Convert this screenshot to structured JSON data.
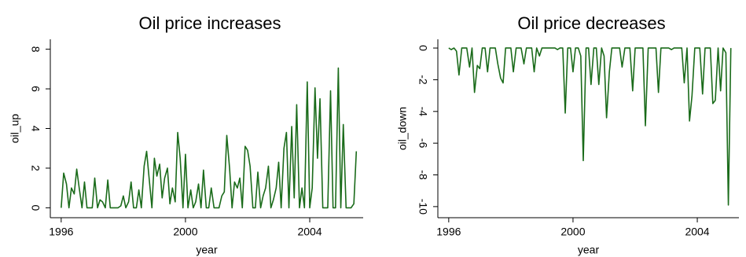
{
  "chart_data": [
    {
      "type": "line",
      "title": "Oil price increases",
      "x_label": "year",
      "y_label": "oil_up",
      "x": [
        1996,
        1996.08,
        1996.17,
        1996.25,
        1996.33,
        1996.42,
        1996.5,
        1996.58,
        1996.67,
        1996.75,
        1996.83,
        1996.92,
        1997,
        1997.08,
        1997.17,
        1997.25,
        1997.33,
        1997.42,
        1997.5,
        1997.58,
        1997.67,
        1997.75,
        1997.83,
        1997.92,
        1998,
        1998.08,
        1998.17,
        1998.25,
        1998.33,
        1998.42,
        1998.5,
        1998.58,
        1998.67,
        1998.75,
        1998.83,
        1998.92,
        1999,
        1999.08,
        1999.17,
        1999.25,
        1999.33,
        1999.42,
        1999.5,
        1999.58,
        1999.67,
        1999.75,
        1999.83,
        1999.92,
        2000,
        2000.08,
        2000.17,
        2000.25,
        2000.33,
        2000.42,
        2000.5,
        2000.58,
        2000.67,
        2000.75,
        2000.83,
        2000.92,
        2001,
        2001.08,
        2001.17,
        2001.25,
        2001.33,
        2001.42,
        2001.5,
        2001.58,
        2001.67,
        2001.75,
        2001.83,
        2001.92,
        2002,
        2002.08,
        2002.17,
        2002.25,
        2002.33,
        2002.42,
        2002.5,
        2002.58,
        2002.67,
        2002.75,
        2002.83,
        2002.92,
        2003,
        2003.08,
        2003.17,
        2003.25,
        2003.33,
        2003.42,
        2003.5,
        2003.58,
        2003.67,
        2003.75,
        2003.83,
        2003.92,
        2004,
        2004.08,
        2004.17,
        2004.25,
        2004.33,
        2004.42,
        2004.5,
        2004.58,
        2004.67,
        2004.75,
        2004.83,
        2004.92,
        2005,
        2005.08,
        2005.17,
        2005.25,
        2005.33,
        2005.42,
        2005.5
      ],
      "series": [
        {
          "name": "oil_up",
          "color": "#1a6b1a",
          "values": [
            0,
            1.75,
            1.2,
            0,
            1.0,
            0.7,
            1.95,
            1.0,
            0,
            1.3,
            0,
            0,
            0,
            1.5,
            0,
            0.4,
            0.3,
            0,
            1.4,
            0,
            0,
            0,
            0,
            0.1,
            0.6,
            0,
            0.3,
            1.3,
            0,
            0,
            0.9,
            0,
            2.1,
            2.85,
            1.5,
            0,
            2.5,
            1.6,
            2.2,
            0.5,
            1.5,
            2.0,
            0.2,
            1.0,
            0.3,
            3.8,
            2.5,
            0,
            2.7,
            0,
            0.9,
            0,
            0.3,
            1.2,
            0,
            1.9,
            0,
            0,
            1.0,
            0,
            0,
            0,
            0.6,
            0.8,
            3.65,
            2.0,
            0,
            1.3,
            1.0,
            1.5,
            0,
            3.1,
            2.9,
            2.1,
            0,
            0,
            1.8,
            0,
            0.6,
            1.0,
            2.1,
            0,
            0.4,
            1.0,
            2.3,
            0,
            3.0,
            3.8,
            0,
            4.1,
            0.5,
            5.2,
            0,
            1.0,
            0,
            6.35,
            0,
            1.0,
            6.05,
            2.5,
            5.5,
            0,
            0,
            0,
            5.9,
            0,
            0,
            7.05,
            0,
            4.2,
            0,
            0,
            0,
            0.2,
            2.85
          ]
        }
      ],
      "xlim": [
        1995.65,
        2005.72
      ],
      "xticks": [
        1996,
        2000,
        2004
      ],
      "ylim": [
        -0.5,
        8.5
      ],
      "yticks": [
        0,
        2,
        4,
        6,
        8
      ]
    },
    {
      "type": "line",
      "title": "Oil price decreases",
      "x_label": "year",
      "y_label": "oil_down",
      "x": [
        1996,
        1996.08,
        1996.17,
        1996.25,
        1996.33,
        1996.42,
        1996.5,
        1996.58,
        1996.67,
        1996.75,
        1996.83,
        1996.92,
        1997,
        1997.08,
        1997.17,
        1997.25,
        1997.33,
        1997.42,
        1997.5,
        1997.58,
        1997.67,
        1997.75,
        1997.83,
        1997.92,
        1998,
        1998.08,
        1998.17,
        1998.25,
        1998.33,
        1998.42,
        1998.5,
        1998.58,
        1998.67,
        1998.75,
        1998.83,
        1998.92,
        1999,
        1999.08,
        1999.17,
        1999.25,
        1999.33,
        1999.42,
        1999.5,
        1999.58,
        1999.67,
        1999.75,
        1999.83,
        1999.92,
        2000,
        2000.08,
        2000.17,
        2000.25,
        2000.33,
        2000.42,
        2000.5,
        2000.58,
        2000.67,
        2000.75,
        2000.83,
        2000.92,
        2001,
        2001.08,
        2001.17,
        2001.25,
        2001.33,
        2001.42,
        2001.5,
        2001.58,
        2001.67,
        2001.75,
        2001.83,
        2001.92,
        2002,
        2002.08,
        2002.17,
        2002.25,
        2002.33,
        2002.42,
        2002.5,
        2002.58,
        2002.67,
        2002.75,
        2002.83,
        2002.92,
        2003,
        2003.08,
        2003.17,
        2003.25,
        2003.33,
        2003.42,
        2003.5,
        2003.58,
        2003.67,
        2003.75,
        2003.83,
        2003.92,
        2004,
        2004.08,
        2004.17,
        2004.25,
        2004.33,
        2004.42,
        2004.5,
        2004.58,
        2004.67,
        2004.75,
        2004.83,
        2004.92,
        2005,
        2005.08
      ],
      "series": [
        {
          "name": "oil_down",
          "color": "#1a6b1a",
          "values": [
            0,
            -0.1,
            0,
            -0.2,
            -1.7,
            0,
            0,
            0,
            -1.2,
            0,
            -2.8,
            -1.1,
            -1.3,
            0,
            0,
            -1.5,
            0,
            0,
            0,
            -1.0,
            -1.9,
            -2.2,
            0,
            0,
            0,
            -1.5,
            0,
            0,
            0,
            -1.0,
            0,
            0,
            0,
            -1.5,
            0,
            -0.5,
            0,
            0,
            0,
            0,
            0,
            0,
            -0.1,
            0,
            0,
            -4.1,
            0,
            0,
            -1.5,
            0,
            0,
            -0.5,
            -7.1,
            0,
            0,
            -2.3,
            0,
            0,
            -2.3,
            0,
            -0.5,
            -4.4,
            -1.5,
            0,
            0,
            0,
            0,
            -1.2,
            0,
            0,
            0,
            -2.7,
            0,
            0,
            0,
            0,
            -4.9,
            0,
            0,
            0,
            0,
            -2.8,
            0,
            0,
            0,
            0,
            -0.1,
            0,
            0,
            0,
            0,
            -2.2,
            0,
            -4.6,
            -3.0,
            0,
            0,
            0,
            -2.9,
            0,
            0,
            0,
            -3.5,
            -3.3,
            0,
            -2.7,
            0,
            -0.3,
            -9.9,
            0
          ]
        }
      ],
      "xlim": [
        1995.65,
        2005.34
      ],
      "xticks": [
        1996,
        2000,
        2004
      ],
      "ylim": [
        -10.7,
        0.55
      ],
      "yticks": [
        -10,
        -8,
        -6,
        -4,
        -2,
        0
      ]
    }
  ]
}
